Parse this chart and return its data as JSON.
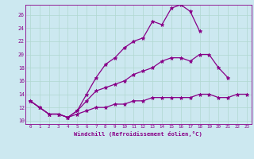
{
  "xlabel": "Windchill (Refroidissement éolien,°C)",
  "bg_color": "#cce8f0",
  "grid_color": "#b0d8d0",
  "line_color": "#880088",
  "xlim": [
    -0.5,
    23.5
  ],
  "ylim": [
    9.5,
    27.5
  ],
  "xticks": [
    0,
    1,
    2,
    3,
    4,
    5,
    6,
    7,
    8,
    9,
    10,
    11,
    12,
    13,
    14,
    15,
    16,
    17,
    18,
    19,
    20,
    21,
    22,
    23
  ],
  "yticks": [
    10,
    12,
    14,
    16,
    18,
    20,
    22,
    24,
    26
  ],
  "series": [
    {
      "x": [
        0,
        1,
        2,
        3,
        4,
        5,
        6,
        7,
        8,
        9,
        10,
        11,
        12,
        13,
        14,
        15,
        16,
        17,
        18
      ],
      "y": [
        13,
        12,
        11,
        11,
        10.5,
        11.5,
        14,
        16.5,
        18.5,
        19.5,
        21,
        22,
        22.5,
        25,
        24.5,
        27,
        27.5,
        26.5,
        23.5
      ]
    },
    {
      "x": [
        0,
        1,
        2,
        3,
        4,
        5,
        6,
        7,
        8,
        9,
        10,
        11,
        12,
        13,
        14,
        15,
        16,
        17,
        18,
        19,
        20,
        21
      ],
      "y": [
        13,
        12,
        11,
        11,
        10.5,
        11.5,
        13,
        14.5,
        15,
        15.5,
        16,
        17,
        17.5,
        18,
        19,
        19.5,
        19.5,
        19,
        20,
        20,
        18,
        16.5
      ]
    },
    {
      "x": [
        0,
        1,
        2,
        3,
        4,
        5,
        6,
        7,
        8,
        9,
        10,
        11,
        12,
        13,
        14,
        15,
        16,
        17,
        18,
        19,
        20,
        21,
        22,
        23
      ],
      "y": [
        13,
        12,
        11,
        11,
        10.5,
        11,
        11.5,
        12,
        12,
        12.5,
        12.5,
        13,
        13,
        13.5,
        13.5,
        13.5,
        13.5,
        13.5,
        14,
        14,
        13.5,
        13.5,
        14,
        14
      ]
    }
  ]
}
